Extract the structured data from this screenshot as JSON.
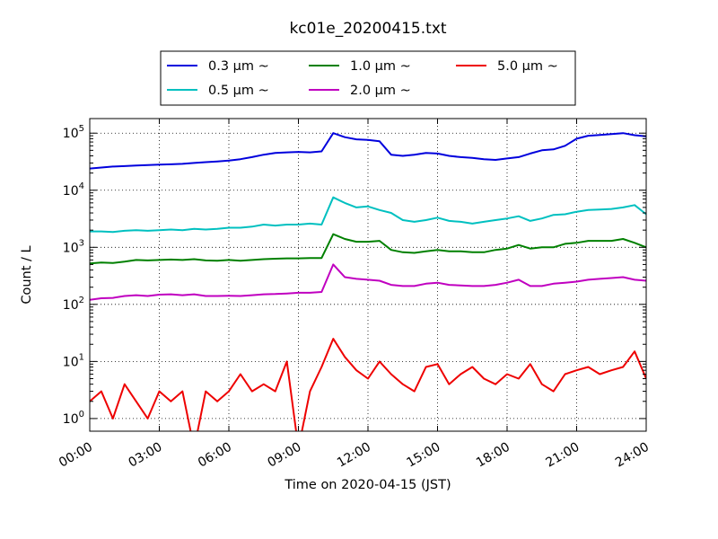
{
  "chart_data": {
    "type": "line",
    "title": "kc01e_20200415.txt",
    "xlabel": "Time on 2020-04-15 (JST)",
    "ylabel": "Count / L",
    "yscale": "log",
    "xlim": [
      "2020-04-15 00:00",
      "2020-04-16 00:00"
    ],
    "ylim": [
      0.6,
      180000
    ],
    "grid": true,
    "legend_position": "top-center, outside plot",
    "x_ticks": [
      "00:00",
      "03:00",
      "06:00",
      "09:00",
      "12:00",
      "15:00",
      "18:00",
      "21:00",
      "24:00"
    ],
    "y_ticks": [
      {
        "value": 1,
        "mantissa": "10",
        "exp": "0"
      },
      {
        "value": 10,
        "mantissa": "10",
        "exp": "1"
      },
      {
        "value": 100,
        "mantissa": "10",
        "exp": "2"
      },
      {
        "value": 1000,
        "mantissa": "10",
        "exp": "3"
      },
      {
        "value": 10000,
        "mantissa": "10",
        "exp": "4"
      },
      {
        "value": 100000,
        "mantissa": "10",
        "exp": "5"
      }
    ],
    "x_times": [
      "00:00",
      "00:30",
      "01:00",
      "01:30",
      "02:00",
      "02:30",
      "03:00",
      "03:30",
      "04:00",
      "04:30",
      "05:00",
      "05:30",
      "06:00",
      "06:30",
      "07:00",
      "07:30",
      "08:00",
      "08:30",
      "09:00",
      "09:30",
      "10:00",
      "10:30",
      "11:00",
      "11:30",
      "12:00",
      "12:30",
      "13:00",
      "13:30",
      "14:00",
      "14:30",
      "15:00",
      "15:30",
      "16:00",
      "16:30",
      "17:00",
      "17:30",
      "18:00",
      "18:30",
      "19:00",
      "19:30",
      "20:00",
      "20:30",
      "21:00",
      "21:30",
      "22:00",
      "22:30",
      "23:00",
      "23:30",
      "24:00"
    ],
    "series": [
      {
        "name": "0.3 μm ~",
        "color": "#0000dd",
        "values": [
          24000,
          25000,
          26000,
          26500,
          27000,
          27500,
          28000,
          28500,
          29000,
          30000,
          31000,
          32000,
          33000,
          35000,
          38000,
          42000,
          45000,
          46000,
          47000,
          46000,
          48000,
          100000,
          85000,
          78000,
          76000,
          72000,
          42000,
          40000,
          42000,
          45000,
          44000,
          40000,
          38000,
          37000,
          35000,
          34000,
          36000,
          38000,
          44000,
          50000,
          52000,
          60000,
          80000,
          90000,
          93000,
          96000,
          100000,
          92000,
          88000
        ]
      },
      {
        "name": "0.5 μm ~",
        "color": "#00c0c0",
        "values": [
          1900,
          1900,
          1850,
          1950,
          2000,
          1950,
          2000,
          2050,
          2000,
          2100,
          2050,
          2100,
          2200,
          2200,
          2300,
          2500,
          2400,
          2500,
          2500,
          2600,
          2500,
          7500,
          6000,
          5000,
          5200,
          4500,
          4000,
          3000,
          2800,
          3000,
          3300,
          2900,
          2800,
          2600,
          2800,
          3000,
          3200,
          3500,
          2900,
          3200,
          3700,
          3800,
          4200,
          4500,
          4600,
          4700,
          5000,
          5500,
          3800
        ]
      },
      {
        "name": "1.0 μm ~",
        "color": "#008000",
        "values": [
          520,
          540,
          530,
          560,
          600,
          590,
          600,
          610,
          600,
          620,
          590,
          580,
          600,
          580,
          600,
          620,
          630,
          640,
          640,
          650,
          650,
          1700,
          1400,
          1250,
          1250,
          1300,
          900,
          820,
          800,
          850,
          900,
          850,
          850,
          820,
          820,
          900,
          950,
          1100,
          950,
          1000,
          1000,
          1150,
          1200,
          1300,
          1300,
          1300,
          1400,
          1200,
          1000
        ]
      },
      {
        "name": "2.0 μm ~",
        "color": "#c000c0",
        "values": [
          120,
          128,
          130,
          140,
          145,
          140,
          148,
          150,
          145,
          150,
          140,
          140,
          142,
          140,
          145,
          150,
          152,
          155,
          160,
          160,
          165,
          500,
          300,
          280,
          270,
          260,
          220,
          210,
          210,
          230,
          240,
          220,
          215,
          210,
          210,
          220,
          240,
          270,
          210,
          210,
          230,
          240,
          250,
          270,
          280,
          290,
          300,
          270,
          260
        ]
      },
      {
        "name": "5.0 μm ~",
        "color": "#ee0000",
        "values": [
          2,
          3,
          1,
          4,
          2,
          1,
          3,
          2,
          3,
          0.3,
          3,
          2,
          3,
          6,
          3,
          4,
          3,
          10,
          0.3,
          3,
          8,
          25,
          12,
          7,
          5,
          10,
          6,
          4,
          3,
          8,
          9,
          4,
          6,
          8,
          5,
          4,
          6,
          5,
          9,
          4,
          3,
          6,
          7,
          8,
          6,
          7,
          8,
          15,
          5
        ]
      }
    ]
  }
}
